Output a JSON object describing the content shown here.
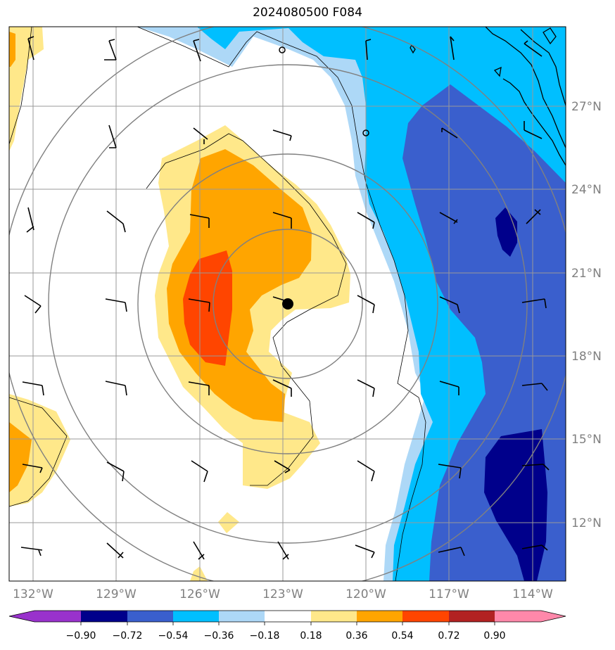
{
  "title": "2024080500 F084",
  "map": {
    "lon_labels": [
      "132°W",
      "129°W",
      "126°W",
      "123°W",
      "120°W",
      "117°W",
      "114°W"
    ],
    "lat_labels": [
      "27°N",
      "24°N",
      "21°N",
      "18°N",
      "15°N",
      "12°N"
    ],
    "storm_center": {
      "lon": "123°W",
      "lat": "20°N"
    },
    "contour_fill_colors": {
      "neg_0.90_plus": "#9932cc",
      "neg_0.90_0.72": "#00008b",
      "neg_0.72_0.54": "#3a5fcd",
      "neg_0.54_0.36": "#00bfff",
      "neg_0.36_0.18": "#add8f7",
      "neg_0.18_0.18": "#ffffff",
      "pos_0.18_0.36": "#ffe88a",
      "pos_0.36_0.54": "#ffa500",
      "pos_0.54_0.72": "#ff4500",
      "pos_0.72_0.90": "#b22222",
      "pos_0.90_plus": "#ff88aa"
    }
  },
  "colorbar": {
    "ticks": [
      "−0.90",
      "−0.72",
      "−0.54",
      "−0.36",
      "−0.18",
      "0.18",
      "0.36",
      "0.54",
      "0.72",
      "0.90"
    ]
  }
}
